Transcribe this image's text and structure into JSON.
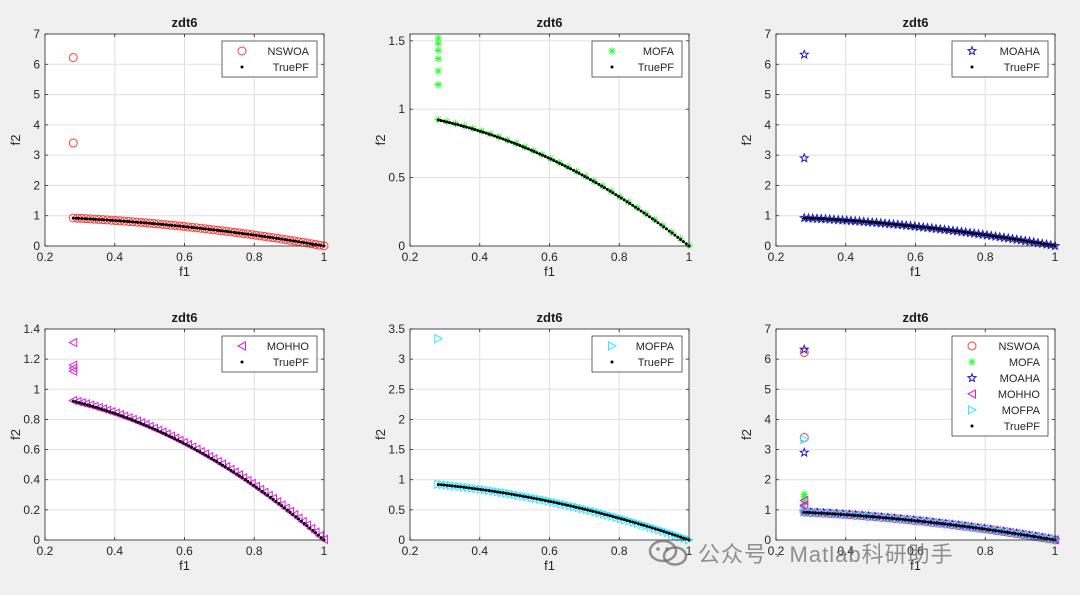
{
  "colors": {
    "background": "#f0f0f0",
    "axes_bg": "#ffffff",
    "grid": "#e0e0e0",
    "truepf": "#000000",
    "NSWOA": "#ff3b3b",
    "MOFA": "#33ff33",
    "MOAHA": "#1a1acc",
    "MOHHO": "#e020e0",
    "MOFPA": "#33e6ff"
  },
  "watermark": {
    "text": "公众号 · Matlab科研助手",
    "icon": "wechat-logo-icon"
  },
  "chart_data": [
    {
      "type": "scatter",
      "title": "zdt6",
      "xlabel": "f1",
      "ylabel": "f2",
      "xlim": [
        0.2,
        1
      ],
      "ylim": [
        0,
        7
      ],
      "xticks": [
        "0.2",
        "0.4",
        "0.6",
        "0.8",
        "1"
      ],
      "yticks": [
        "0",
        "1",
        "2",
        "3",
        "4",
        "5",
        "6",
        "7"
      ],
      "grid": true,
      "legend_position": "top-right",
      "series": [
        {
          "name": "NSWOA",
          "marker": "circle",
          "color": "#ff3b3b",
          "points": [
            [
              0.281,
              6.22
            ],
            [
              0.281,
              3.4
            ]
          ],
          "front": {
            "from": 0.281,
            "to": 1,
            "count": 60
          }
        },
        {
          "name": "TruePF",
          "marker": "dot",
          "color": "#000000",
          "front": {
            "from": 0.281,
            "to": 1,
            "count": 90
          }
        }
      ]
    },
    {
      "type": "scatter",
      "title": "zdt6",
      "xlabel": "f1",
      "ylabel": "f2",
      "xlim": [
        0.2,
        1
      ],
      "ylim": [
        0,
        1.55
      ],
      "xticks": [
        "0.2",
        "0.4",
        "0.6",
        "0.8",
        "1"
      ],
      "ytick_values": [
        0,
        0.5,
        1,
        1.5
      ],
      "yticks": [
        "0",
        "0.5",
        "1",
        "1.5"
      ],
      "grid": true,
      "legend_position": "top-right",
      "series": [
        {
          "name": "MOFA",
          "marker": "asterisk",
          "color": "#33ff33",
          "points": [
            [
              0.281,
              1.52
            ],
            [
              0.281,
              1.48
            ],
            [
              0.281,
              1.43
            ],
            [
              0.281,
              1.37
            ],
            [
              0.281,
              1.28
            ],
            [
              0.281,
              1.18
            ]
          ],
          "front": {
            "from": 0.281,
            "to": 1,
            "count": 30
          }
        },
        {
          "name": "TruePF",
          "marker": "dot",
          "color": "#000000",
          "front": {
            "from": 0.281,
            "to": 1,
            "count": 90
          }
        }
      ]
    },
    {
      "type": "scatter",
      "title": "zdt6",
      "xlabel": "f1",
      "ylabel": "f2",
      "xlim": [
        0.2,
        1
      ],
      "ylim": [
        0,
        7
      ],
      "xticks": [
        "0.2",
        "0.4",
        "0.6",
        "0.8",
        "1"
      ],
      "yticks": [
        "0",
        "1",
        "2",
        "3",
        "4",
        "5",
        "6",
        "7"
      ],
      "grid": true,
      "legend_position": "top-right",
      "series": [
        {
          "name": "MOAHA",
          "marker": "star",
          "color": "#1a1acc",
          "points": [
            [
              0.281,
              6.32
            ],
            [
              0.281,
              2.9
            ]
          ],
          "front": {
            "from": 0.281,
            "to": 1,
            "count": 60
          }
        },
        {
          "name": "TruePF",
          "marker": "dot",
          "color": "#000000",
          "front": {
            "from": 0.281,
            "to": 1,
            "count": 90
          }
        }
      ]
    },
    {
      "type": "scatter",
      "title": "zdt6",
      "xlabel": "f1",
      "ylabel": "f2",
      "xlim": [
        0.2,
        1
      ],
      "ylim": [
        0,
        1.4
      ],
      "xticks": [
        "0.2",
        "0.4",
        "0.6",
        "0.8",
        "1"
      ],
      "ytick_values": [
        0,
        0.2,
        0.4,
        0.6,
        0.8,
        1,
        1.2,
        1.4
      ],
      "yticks": [
        "0",
        "0.2",
        "0.4",
        "0.6",
        "0.8",
        "1",
        "1.2",
        "1.4"
      ],
      "grid": true,
      "legend_position": "top-right",
      "series": [
        {
          "name": "MOHHO",
          "marker": "triangle-left",
          "color": "#e020e0",
          "points": [
            [
              0.281,
              1.31
            ],
            [
              0.281,
              1.16
            ],
            [
              0.281,
              1.14
            ],
            [
              0.281,
              1.12
            ]
          ],
          "front": {
            "from": 0.281,
            "to": 1,
            "count": 60
          }
        },
        {
          "name": "TruePF",
          "marker": "dot",
          "color": "#000000",
          "front": {
            "from": 0.281,
            "to": 1,
            "count": 90
          }
        }
      ]
    },
    {
      "type": "scatter",
      "title": "zdt6",
      "xlabel": "f1",
      "ylabel": "f2",
      "xlim": [
        0.2,
        1
      ],
      "ylim": [
        0,
        3.5
      ],
      "xticks": [
        "0.2",
        "0.4",
        "0.6",
        "0.8",
        "1"
      ],
      "ytick_values": [
        0,
        0.5,
        1,
        1.5,
        2,
        2.5,
        3,
        3.5
      ],
      "yticks": [
        "0",
        "0.5",
        "1",
        "1.5",
        "2",
        "2.5",
        "3",
        "3.5"
      ],
      "grid": true,
      "legend_position": "top-right",
      "series": [
        {
          "name": "MOFPA",
          "marker": "triangle-right",
          "color": "#33e6ff",
          "points": [
            [
              0.281,
              3.34
            ]
          ],
          "front": {
            "from": 0.281,
            "to": 1,
            "count": 60
          }
        },
        {
          "name": "TruePF",
          "marker": "dot",
          "color": "#000000",
          "front": {
            "from": 0.281,
            "to": 1,
            "count": 90
          }
        }
      ]
    },
    {
      "type": "scatter",
      "title": "zdt6",
      "xlabel": "f1",
      "ylabel": "f2",
      "xlim": [
        0.2,
        1
      ],
      "ylim": [
        0,
        7
      ],
      "xticks": [
        "0.2",
        "0.4",
        "0.6",
        "0.8",
        "1"
      ],
      "yticks": [
        "0",
        "1",
        "2",
        "3",
        "4",
        "5",
        "6",
        "7"
      ],
      "grid": true,
      "legend_position": "top-right",
      "series": [
        {
          "name": "NSWOA",
          "marker": "circle",
          "color": "#ff3b3b",
          "points": [
            [
              0.281,
              6.22
            ],
            [
              0.281,
              3.4
            ]
          ],
          "front": {
            "from": 0.281,
            "to": 1,
            "count": 40
          }
        },
        {
          "name": "MOFA",
          "marker": "asterisk",
          "color": "#33ff33",
          "points": [
            [
              0.281,
              1.52
            ],
            [
              0.281,
              1.43
            ],
            [
              0.281,
              1.3
            ],
            [
              0.281,
              1.18
            ]
          ],
          "front": {
            "from": 0.281,
            "to": 1,
            "count": 25
          }
        },
        {
          "name": "MOAHA",
          "marker": "star",
          "color": "#1a1acc",
          "points": [
            [
              0.281,
              6.32
            ],
            [
              0.281,
              2.9
            ]
          ],
          "front": {
            "from": 0.281,
            "to": 1,
            "count": 40
          }
        },
        {
          "name": "MOHHO",
          "marker": "triangle-left",
          "color": "#e020e0",
          "points": [
            [
              0.281,
              1.31
            ],
            [
              0.281,
              1.16
            ],
            [
              0.281,
              1.12
            ]
          ],
          "front": {
            "from": 0.281,
            "to": 1,
            "count": 40
          }
        },
        {
          "name": "MOFPA",
          "marker": "triangle-right",
          "color": "#33e6ff",
          "points": [
            [
              0.281,
              3.34
            ]
          ],
          "front": {
            "from": 0.281,
            "to": 1,
            "count": 40
          }
        },
        {
          "name": "TruePF",
          "marker": "dot",
          "color": "#000000",
          "front": {
            "from": 0.281,
            "to": 1,
            "count": 90
          }
        }
      ]
    }
  ]
}
